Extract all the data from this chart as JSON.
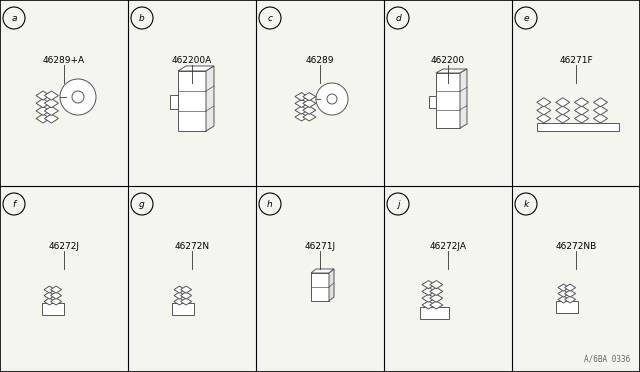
{
  "background_color": "#f5f5f0",
  "border_color": "#000000",
  "grid_line_color": "#000000",
  "grid_rows": 2,
  "grid_cols": 5,
  "watermark": "A/6BA 0336",
  "cells": [
    {
      "row": 0,
      "col": 0,
      "label": "a",
      "part_number": "46289+A",
      "shape": "cluster_disc_large"
    },
    {
      "row": 0,
      "col": 1,
      "label": "b",
      "part_number": "462200A",
      "shape": "tall_caliper"
    },
    {
      "row": 0,
      "col": 2,
      "label": "c",
      "part_number": "46289",
      "shape": "cluster_disc_small"
    },
    {
      "row": 0,
      "col": 3,
      "label": "d",
      "part_number": "462200",
      "shape": "tall_caliper2"
    },
    {
      "row": 0,
      "col": 4,
      "label": "e",
      "part_number": "46271F",
      "shape": "wide_connector"
    },
    {
      "row": 1,
      "col": 0,
      "label": "f",
      "part_number": "46272J",
      "shape": "small_connector"
    },
    {
      "row": 1,
      "col": 1,
      "label": "g",
      "part_number": "46272N",
      "shape": "small_connector2"
    },
    {
      "row": 1,
      "col": 2,
      "label": "h",
      "part_number": "46271J",
      "shape": "tiny_block"
    },
    {
      "row": 1,
      "col": 3,
      "label": "j",
      "part_number": "46272JA",
      "shape": "medium_connector"
    },
    {
      "row": 1,
      "col": 4,
      "label": "k",
      "part_number": "46272NB",
      "shape": "small_connector3"
    }
  ],
  "text_color": "#000000",
  "part_font_size": 6.5,
  "label_font_size": 6.5,
  "draw_color": "#555555"
}
